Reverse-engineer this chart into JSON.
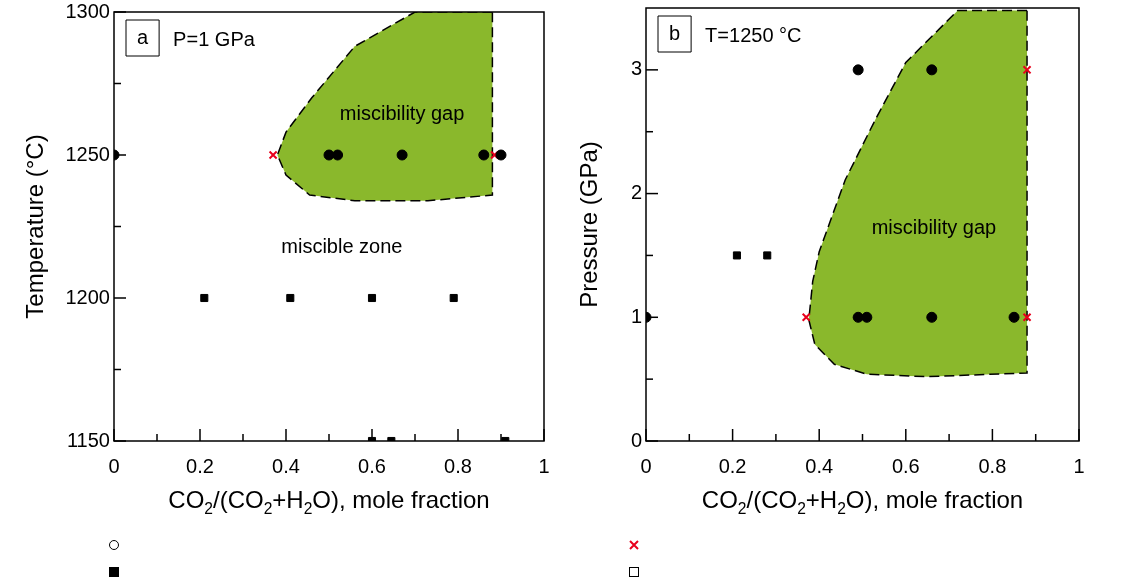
{
  "chart_data": [
    {
      "type": "scatter",
      "title": "a",
      "xlabel": "CO$_{2}$/(CO$_{2}$+H$_{2}$O), mole fraction",
      "ylabel": "Temperature (°C)",
      "xlim": [
        0,
        1
      ],
      "xticks": [
        0,
        {
          "value": 0.1,
          "label": null
        },
        0.2,
        {
          "value": 0.3,
          "label": null
        },
        0.4,
        {
          "value": 0.5,
          "label": null
        },
        0.6,
        {
          "value": 0.7,
          "label": null
        },
        0.8,
        {
          "value": 0.9,
          "label": null
        },
        1
      ],
      "ylim": [
        1150,
        1300
      ],
      "yticks": [
        1150,
        {
          "value": 1175,
          "label": null
        },
        1200,
        {
          "value": 1225,
          "label": null
        },
        1250,
        {
          "value": 1275,
          "label": null
        },
        1300
      ],
      "grid": false,
      "legend": false,
      "annotations": [
        "P=1 GPa",
        "miscibility gap",
        "miscible zone"
      ],
      "series": [
        {
          "type": "area",
          "color": "#8ab82c",
          "line_style": "dashed",
          "x": [
            0.88,
            0.7,
            0.56,
            0.46,
            0.4,
            0.38,
            0.4,
            0.455,
            0.56,
            0.73,
            0.88,
            0.88
          ],
          "values": [
            1300,
            1300,
            1288,
            1270,
            1258,
            1250,
            1243,
            1236,
            1234,
            1234,
            1236,
            1300
          ]
        },
        {
          "type": "scatter",
          "marker": "circle",
          "color": "#000000",
          "x": [
            0,
            0.9
          ],
          "values": [
            1250,
            1250
          ]
        },
        {
          "type": "scatter",
          "marker": "circle",
          "color": "#000000",
          "x": [
            0.5,
            0.52,
            0.67,
            0.86
          ],
          "values": [
            1250,
            1250,
            1250,
            1250
          ]
        },
        {
          "type": "scatter",
          "marker": "cross",
          "color": "#e8001c",
          "x": [
            0.37,
            0.885
          ],
          "values": [
            1250,
            1250
          ]
        },
        {
          "type": "scatter",
          "marker": "square",
          "color": "#000000",
          "x": [
            0.21,
            0.41,
            0.6,
            0.79
          ],
          "values": [
            1200,
            1200,
            1200,
            1200
          ]
        },
        {
          "type": "scatter",
          "marker": "square",
          "color": "#000000",
          "x": [
            0.6,
            0.645,
            0.91
          ],
          "values": [
            1150,
            1150,
            1150
          ]
        }
      ]
    },
    {
      "type": "scatter",
      "title": "b",
      "xlabel": "CO$_{2}$/(CO$_{2}$+H$_{2}$O), mole fraction",
      "ylabel": "Pressure (GPa)",
      "xlim": [
        0,
        1
      ],
      "xticks": [
        0,
        {
          "value": 0.1,
          "label": null
        },
        0.2,
        {
          "value": 0.3,
          "label": null
        },
        0.4,
        {
          "value": 0.5,
          "label": null
        },
        0.6,
        {
          "value": 0.7,
          "label": null
        },
        0.8,
        {
          "value": 0.9,
          "label": null
        },
        1
      ],
      "ylim": [
        0,
        3.5
      ],
      "yticks": [
        0,
        {
          "value": 0.5,
          "label": null
        },
        1,
        {
          "value": 1.5,
          "label": null
        },
        2,
        {
          "value": 2.5,
          "label": null
        },
        3
      ],
      "grid": false,
      "legend": false,
      "annotations": [
        "T=1250 °C",
        "miscibility gap"
      ],
      "series": [
        {
          "type": "area",
          "color": "#8ab82c",
          "line_style": "dashed",
          "x": [
            0.88,
            0.72,
            0.6,
            0.53,
            0.46,
            0.4,
            0.385,
            0.376,
            0.39,
            0.435,
            0.51,
            0.65,
            0.88,
            0.88
          ],
          "values": [
            3.48,
            3.48,
            3.06,
            2.6,
            2.11,
            1.53,
            1.29,
            0.98,
            0.78,
            0.62,
            0.54,
            0.52,
            0.55,
            3.48
          ]
        },
        {
          "type": "scatter",
          "marker": "circle",
          "color": "#000000",
          "x": [
            0,
            0.49
          ],
          "values": [
            1,
            3
          ]
        },
        {
          "type": "scatter",
          "marker": "circle",
          "color": "#000000",
          "x": [
            0.49,
            0.51,
            0.66,
            0.85,
            0.66
          ],
          "values": [
            1,
            1,
            1,
            1,
            3
          ]
        },
        {
          "type": "scatter",
          "marker": "cross",
          "color": "#e8001c",
          "x": [
            0.37,
            0.88,
            0.88
          ],
          "values": [
            1,
            1,
            3
          ]
        },
        {
          "type": "scatter",
          "marker": "square",
          "color": "#000000",
          "x": [
            0.21,
            0.28
          ],
          "values": [
            1.5,
            1.5
          ]
        }
      ]
    }
  ]
}
